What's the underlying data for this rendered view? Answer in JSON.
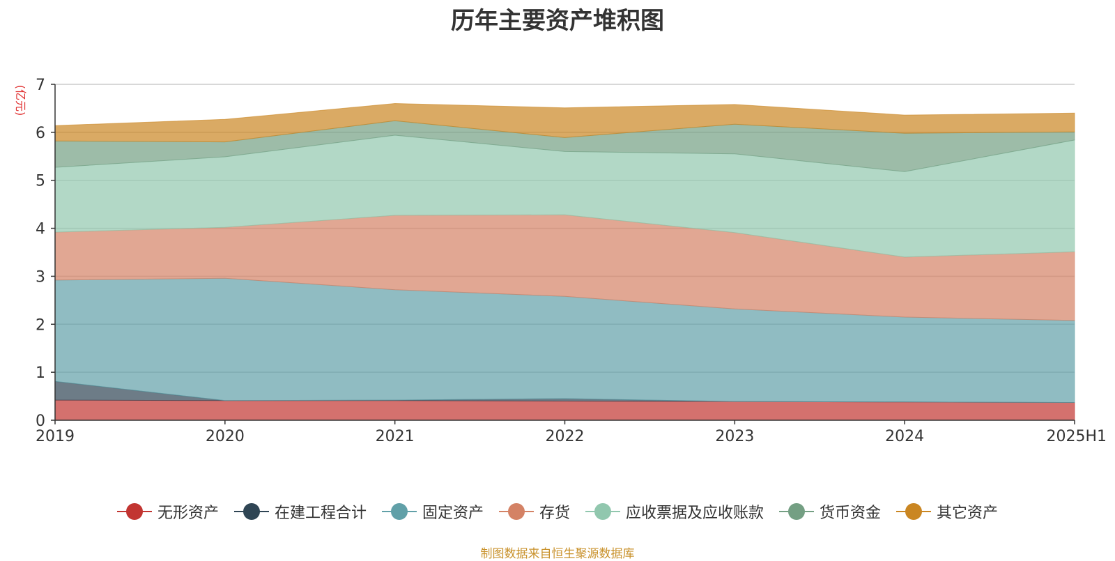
{
  "chart_data": {
    "type": "area",
    "stacked": true,
    "title": "历年主要资产堆积图",
    "ylabel": "(亿元)",
    "categories": [
      "2019",
      "2020",
      "2021",
      "2022",
      "2023",
      "2024",
      "2025H1"
    ],
    "ylim": [
      0,
      7
    ],
    "yticks": [
      0,
      1,
      2,
      3,
      4,
      5,
      6,
      7
    ],
    "grid": true,
    "legend_position": "bottom",
    "series": [
      {
        "name": "无形资产",
        "color": "#c23531",
        "values": [
          0.42,
          0.41,
          0.41,
          0.4,
          0.39,
          0.38,
          0.37
        ]
      },
      {
        "name": "在建工程合计",
        "color": "#2f4554",
        "values": [
          0.39,
          0.0,
          0.01,
          0.05,
          0.0,
          0.0,
          0.0
        ]
      },
      {
        "name": "固定资产",
        "color": "#61a0a8",
        "values": [
          2.11,
          2.55,
          2.3,
          2.13,
          1.93,
          1.77,
          1.71
        ]
      },
      {
        "name": "存货",
        "color": "#d48265",
        "values": [
          1.0,
          1.06,
          1.55,
          1.7,
          1.59,
          1.25,
          1.43
        ]
      },
      {
        "name": "应收票据及应收账款",
        "color": "#91c7ae",
        "values": [
          1.35,
          1.47,
          1.67,
          1.32,
          1.64,
          1.78,
          2.33
        ]
      },
      {
        "name": "货币资金",
        "color": "#749f83",
        "values": [
          0.55,
          0.31,
          0.3,
          0.29,
          0.62,
          0.8,
          0.17
        ]
      },
      {
        "name": "其它资产",
        "color": "#ca8622",
        "values": [
          0.32,
          0.47,
          0.36,
          0.62,
          0.41,
          0.38,
          0.39
        ]
      }
    ]
  },
  "source_note": "制图数据来自恒生聚源数据库"
}
